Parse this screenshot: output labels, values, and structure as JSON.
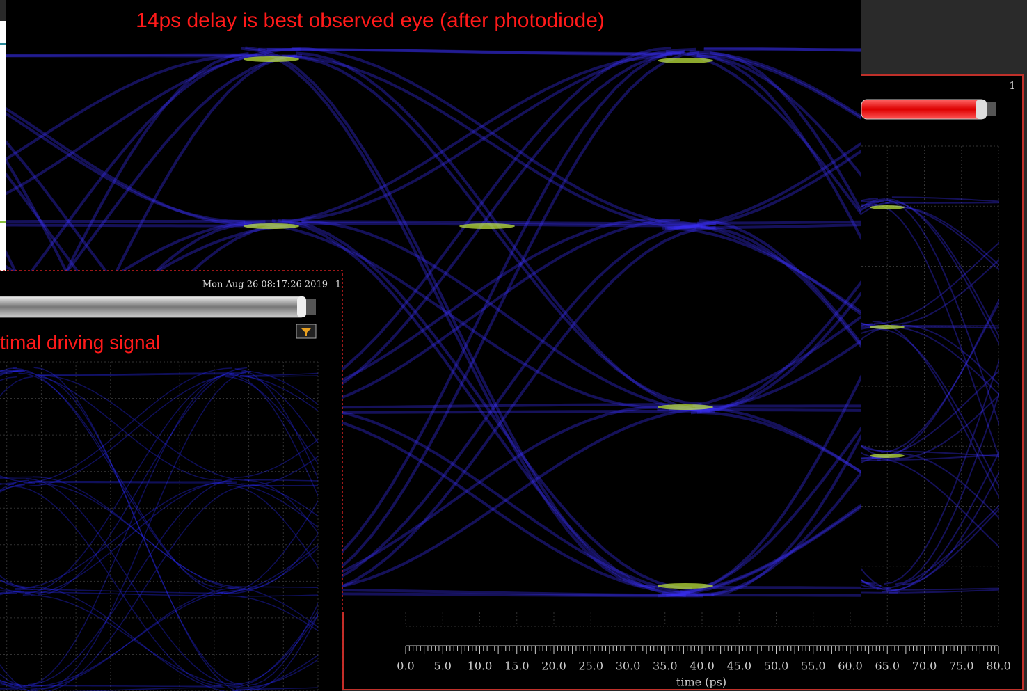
{
  "main_image": {
    "annotation": "14ps delay is best observed eye (after photodiode)"
  },
  "right_window": {
    "channel": "1",
    "axis": {
      "ticks": [
        "0.0",
        "5.0",
        "10.0",
        "15.0",
        "20.0",
        "25.0",
        "30.0",
        "35.0",
        "40.0",
        "45.0",
        "50.0",
        "55.0",
        "60.0",
        "65.0",
        "70.0",
        "75.0",
        "80.0"
      ],
      "label": "time (ps)"
    }
  },
  "left_window": {
    "timestamp": "Mon Aug 26 08:17:26 2019",
    "channel": "1",
    "annotation": "timal driving signal"
  }
}
